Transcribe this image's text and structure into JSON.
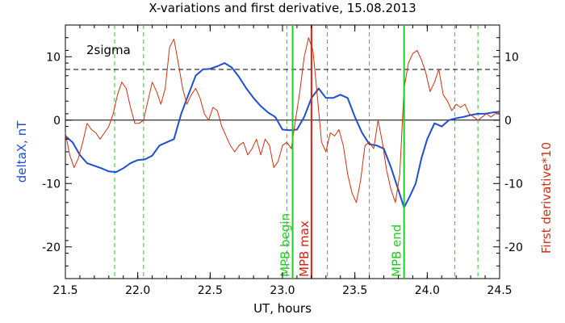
{
  "chart_data": {
    "type": "line",
    "title": "X-variations and first derivative, 15.08.2013",
    "xlabel": "UT, hours",
    "ylabel_left": "deltaX, nT",
    "ylabel_right": "First derivative*10",
    "xlim": [
      21.5,
      24.5
    ],
    "ylim": [
      -25,
      15
    ],
    "x_ticks": [
      "21.5",
      "22.0",
      "22.5",
      "23.0",
      "23.5",
      "24.0",
      "24.5"
    ],
    "x_tick_values": [
      21.5,
      22.0,
      22.5,
      23.0,
      23.5,
      24.0,
      24.5
    ],
    "y_ticks": [
      "-20",
      "-10",
      "0",
      "10"
    ],
    "y_tick_values": [
      -20,
      -10,
      0,
      10
    ],
    "colors": {
      "deltaX": "#1f4fd0",
      "derivative": "#d03010",
      "mpb_begin_end": "#22cc22",
      "mpb_max": "#dd2010",
      "sigma": "#000000"
    },
    "two_sigma": {
      "label": "2sigma",
      "value": 8
    },
    "zero_line": 0,
    "vertical_markers": [
      {
        "label": "MPB begin",
        "x": 23.07,
        "color": "#22cc22",
        "style": "solid"
      },
      {
        "label": "MPB max",
        "x": 23.2,
        "color": "#dd2010",
        "style": "solid"
      },
      {
        "label": "MPB end",
        "x": 23.84,
        "color": "#22cc22",
        "style": "solid"
      }
    ],
    "dashed_markers_x": [
      21.84,
      22.04,
      23.03,
      23.31,
      23.6,
      24.19,
      24.35
    ],
    "series": [
      {
        "key": "deltaX",
        "points": [
          [
            21.5,
            -2.5
          ],
          [
            21.55,
            -3.5
          ],
          [
            21.6,
            -5.5
          ],
          [
            21.65,
            -6.8
          ],
          [
            21.7,
            -7.2
          ],
          [
            21.75,
            -7.6
          ],
          [
            21.8,
            -8.1
          ],
          [
            21.85,
            -8.2
          ],
          [
            21.9,
            -7.6
          ],
          [
            21.95,
            -6.8
          ],
          [
            22.0,
            -6.3
          ],
          [
            22.05,
            -6.2
          ],
          [
            22.1,
            -5.6
          ],
          [
            22.15,
            -4.0
          ],
          [
            22.2,
            -3.5
          ],
          [
            22.25,
            -3.0
          ],
          [
            22.3,
            1.0
          ],
          [
            22.35,
            4.0
          ],
          [
            22.4,
            7.0
          ],
          [
            22.45,
            8.0
          ],
          [
            22.5,
            8.1
          ],
          [
            22.55,
            8.5
          ],
          [
            22.6,
            9.0
          ],
          [
            22.65,
            8.3
          ],
          [
            22.7,
            6.8
          ],
          [
            22.75,
            5.0
          ],
          [
            22.8,
            3.5
          ],
          [
            22.85,
            2.2
          ],
          [
            22.9,
            1.2
          ],
          [
            22.95,
            0.5
          ],
          [
            23.0,
            -1.5
          ],
          [
            23.05,
            -1.6
          ],
          [
            23.1,
            -1.5
          ],
          [
            23.15,
            0.5
          ],
          [
            23.2,
            3.5
          ],
          [
            23.25,
            5.0
          ],
          [
            23.3,
            3.5
          ],
          [
            23.35,
            3.5
          ],
          [
            23.4,
            4.0
          ],
          [
            23.45,
            3.5
          ],
          [
            23.5,
            0.5
          ],
          [
            23.55,
            -2.0
          ],
          [
            23.6,
            -3.8
          ],
          [
            23.65,
            -4.0
          ],
          [
            23.7,
            -4.5
          ],
          [
            23.75,
            -7.5
          ],
          [
            23.8,
            -11.0
          ],
          [
            23.84,
            -13.8
          ],
          [
            23.88,
            -12.0
          ],
          [
            23.92,
            -10.0
          ],
          [
            23.96,
            -6.0
          ],
          [
            24.0,
            -3.0
          ],
          [
            24.05,
            -0.5
          ],
          [
            24.1,
            -1.0
          ],
          [
            24.15,
            0.0
          ],
          [
            24.2,
            0.3
          ],
          [
            24.25,
            0.5
          ],
          [
            24.3,
            0.8
          ],
          [
            24.35,
            1.0
          ],
          [
            24.4,
            1.0
          ],
          [
            24.45,
            1.2
          ],
          [
            24.5,
            1.3
          ]
        ]
      },
      {
        "key": "derivative",
        "points": [
          [
            21.5,
            -2.0
          ],
          [
            21.53,
            -5.5
          ],
          [
            21.56,
            -7.5
          ],
          [
            21.59,
            -6.0
          ],
          [
            21.62,
            -3.5
          ],
          [
            21.65,
            -0.5
          ],
          [
            21.68,
            -1.5
          ],
          [
            21.71,
            -2.0
          ],
          [
            21.74,
            -3.0
          ],
          [
            21.77,
            -2.0
          ],
          [
            21.8,
            -1.0
          ],
          [
            21.83,
            1.0
          ],
          [
            21.86,
            4.0
          ],
          [
            21.89,
            6.0
          ],
          [
            21.92,
            5.0
          ],
          [
            21.95,
            2.0
          ],
          [
            21.98,
            -0.5
          ],
          [
            22.01,
            -0.5
          ],
          [
            22.04,
            0.0
          ],
          [
            22.07,
            3.0
          ],
          [
            22.1,
            6.0
          ],
          [
            22.13,
            4.5
          ],
          [
            22.16,
            2.5
          ],
          [
            22.19,
            5.0
          ],
          [
            22.22,
            11.5
          ],
          [
            22.25,
            12.8
          ],
          [
            22.28,
            9.0
          ],
          [
            22.31,
            5.0
          ],
          [
            22.34,
            2.5
          ],
          [
            22.37,
            4.0
          ],
          [
            22.4,
            5.0
          ],
          [
            22.43,
            3.5
          ],
          [
            22.46,
            1.0
          ],
          [
            22.49,
            0.0
          ],
          [
            22.52,
            2.0
          ],
          [
            22.55,
            1.5
          ],
          [
            22.58,
            -1.0
          ],
          [
            22.61,
            -2.5
          ],
          [
            22.64,
            -4.0
          ],
          [
            22.67,
            -5.0
          ],
          [
            22.7,
            -4.0
          ],
          [
            22.73,
            -3.5
          ],
          [
            22.76,
            -5.5
          ],
          [
            22.79,
            -4.5
          ],
          [
            22.82,
            -3.0
          ],
          [
            22.85,
            -5.5
          ],
          [
            22.88,
            -3.0
          ],
          [
            22.91,
            -4.0
          ],
          [
            22.94,
            -7.5
          ],
          [
            22.97,
            -6.5
          ],
          [
            23.0,
            -4.0
          ],
          [
            23.03,
            -3.5
          ],
          [
            23.06,
            -4.5
          ],
          [
            23.09,
            0.0
          ],
          [
            23.12,
            4.5
          ],
          [
            23.15,
            10.0
          ],
          [
            23.18,
            13.0
          ],
          [
            23.21,
            11.0
          ],
          [
            23.24,
            4.0
          ],
          [
            23.27,
            -3.5
          ],
          [
            23.3,
            -5.0
          ],
          [
            23.33,
            -2.0
          ],
          [
            23.36,
            -2.5
          ],
          [
            23.39,
            -1.5
          ],
          [
            23.42,
            -4.0
          ],
          [
            23.45,
            -8.5
          ],
          [
            23.48,
            -11.5
          ],
          [
            23.51,
            -13.0
          ],
          [
            23.54,
            -9.5
          ],
          [
            23.57,
            -4.0
          ],
          [
            23.6,
            -3.5
          ],
          [
            23.63,
            -4.5
          ],
          [
            23.66,
            0.0
          ],
          [
            23.69,
            -3.5
          ],
          [
            23.72,
            -8.0
          ],
          [
            23.75,
            -11.0
          ],
          [
            23.78,
            -13.0
          ],
          [
            23.81,
            -8.5
          ],
          [
            23.84,
            5.0
          ],
          [
            23.87,
            9.0
          ],
          [
            23.9,
            10.5
          ],
          [
            23.93,
            11.0
          ],
          [
            23.96,
            9.5
          ],
          [
            23.99,
            7.5
          ],
          [
            24.02,
            4.5
          ],
          [
            24.05,
            6.0
          ],
          [
            24.08,
            8.0
          ],
          [
            24.11,
            4.0
          ],
          [
            24.14,
            3.0
          ],
          [
            24.17,
            1.5
          ],
          [
            24.2,
            2.5
          ],
          [
            24.23,
            2.0
          ],
          [
            24.26,
            2.5
          ],
          [
            24.29,
            1.0
          ],
          [
            24.32,
            0.5
          ],
          [
            24.35,
            0.0
          ],
          [
            24.38,
            0.5
          ],
          [
            24.41,
            1.0
          ],
          [
            24.44,
            0.5
          ],
          [
            24.47,
            1.0
          ],
          [
            24.5,
            1.5
          ]
        ]
      }
    ]
  }
}
